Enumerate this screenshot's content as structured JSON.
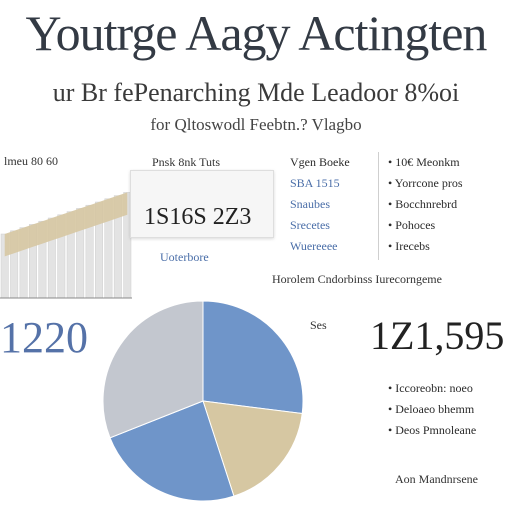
{
  "header": {
    "title": "Youtrge Aagy Actingten",
    "subtitle": "ur Br fePenarching Mde Leadoor 8%oi",
    "tagline": "for Qltoswodl Feebtn.? Vlagbo"
  },
  "left_chart_label": "lmeu 80 60",
  "kpi": {
    "header": "Pnsk 8nk Tuts",
    "value": "1S16S 2Z3",
    "caption": "Uoterbore"
  },
  "middle_list": {
    "header": "Vgen Boeke",
    "items": [
      "SBA 1515",
      "Snaubes",
      "Srecetes",
      "Wuereeee"
    ]
  },
  "right_bullets": [
    "• 10€ Meonkm",
    "• Yorrcone pros",
    "• Bocchnrebrd",
    "• Pohoces",
    "• Irecebs"
  ],
  "footer_line": "Horolem Cndorbinss Iurecorngeme",
  "big_left": "1220",
  "right_stat": {
    "label": "Ses",
    "value": "1Z1,595"
  },
  "paragraph": [
    "• Iccoreobn: noeo",
    "• Deloaeo bhemm",
    "• Deos Pmnoleane"
  ],
  "footer_note": "Aon Mandnrsene",
  "colors": {
    "blue": "#6f95c9",
    "tan": "#d6c7a2",
    "gray": "#c3c7cf",
    "bar": "#e3e3e3",
    "accent": "#5572a8"
  },
  "chart_data": [
    {
      "type": "area",
      "title": "",
      "x": [
        1,
        2,
        3,
        4,
        5,
        6,
        7,
        8,
        9,
        10,
        11,
        12,
        13,
        14
      ],
      "series": [
        {
          "values": [
            40,
            42,
            44,
            46,
            48,
            50,
            52,
            54,
            56,
            58,
            60,
            62,
            64,
            66
          ]
        }
      ],
      "ylim": [
        0,
        80
      ],
      "grid": true
    },
    {
      "type": "pie",
      "title": "",
      "slices": [
        {
          "value": 27,
          "color": "#6f95c9"
        },
        {
          "value": 18,
          "color": "#d6c7a2"
        },
        {
          "value": 24,
          "color": "#6f95c9"
        },
        {
          "value": 31,
          "color": "#c3c7cf"
        }
      ]
    }
  ]
}
